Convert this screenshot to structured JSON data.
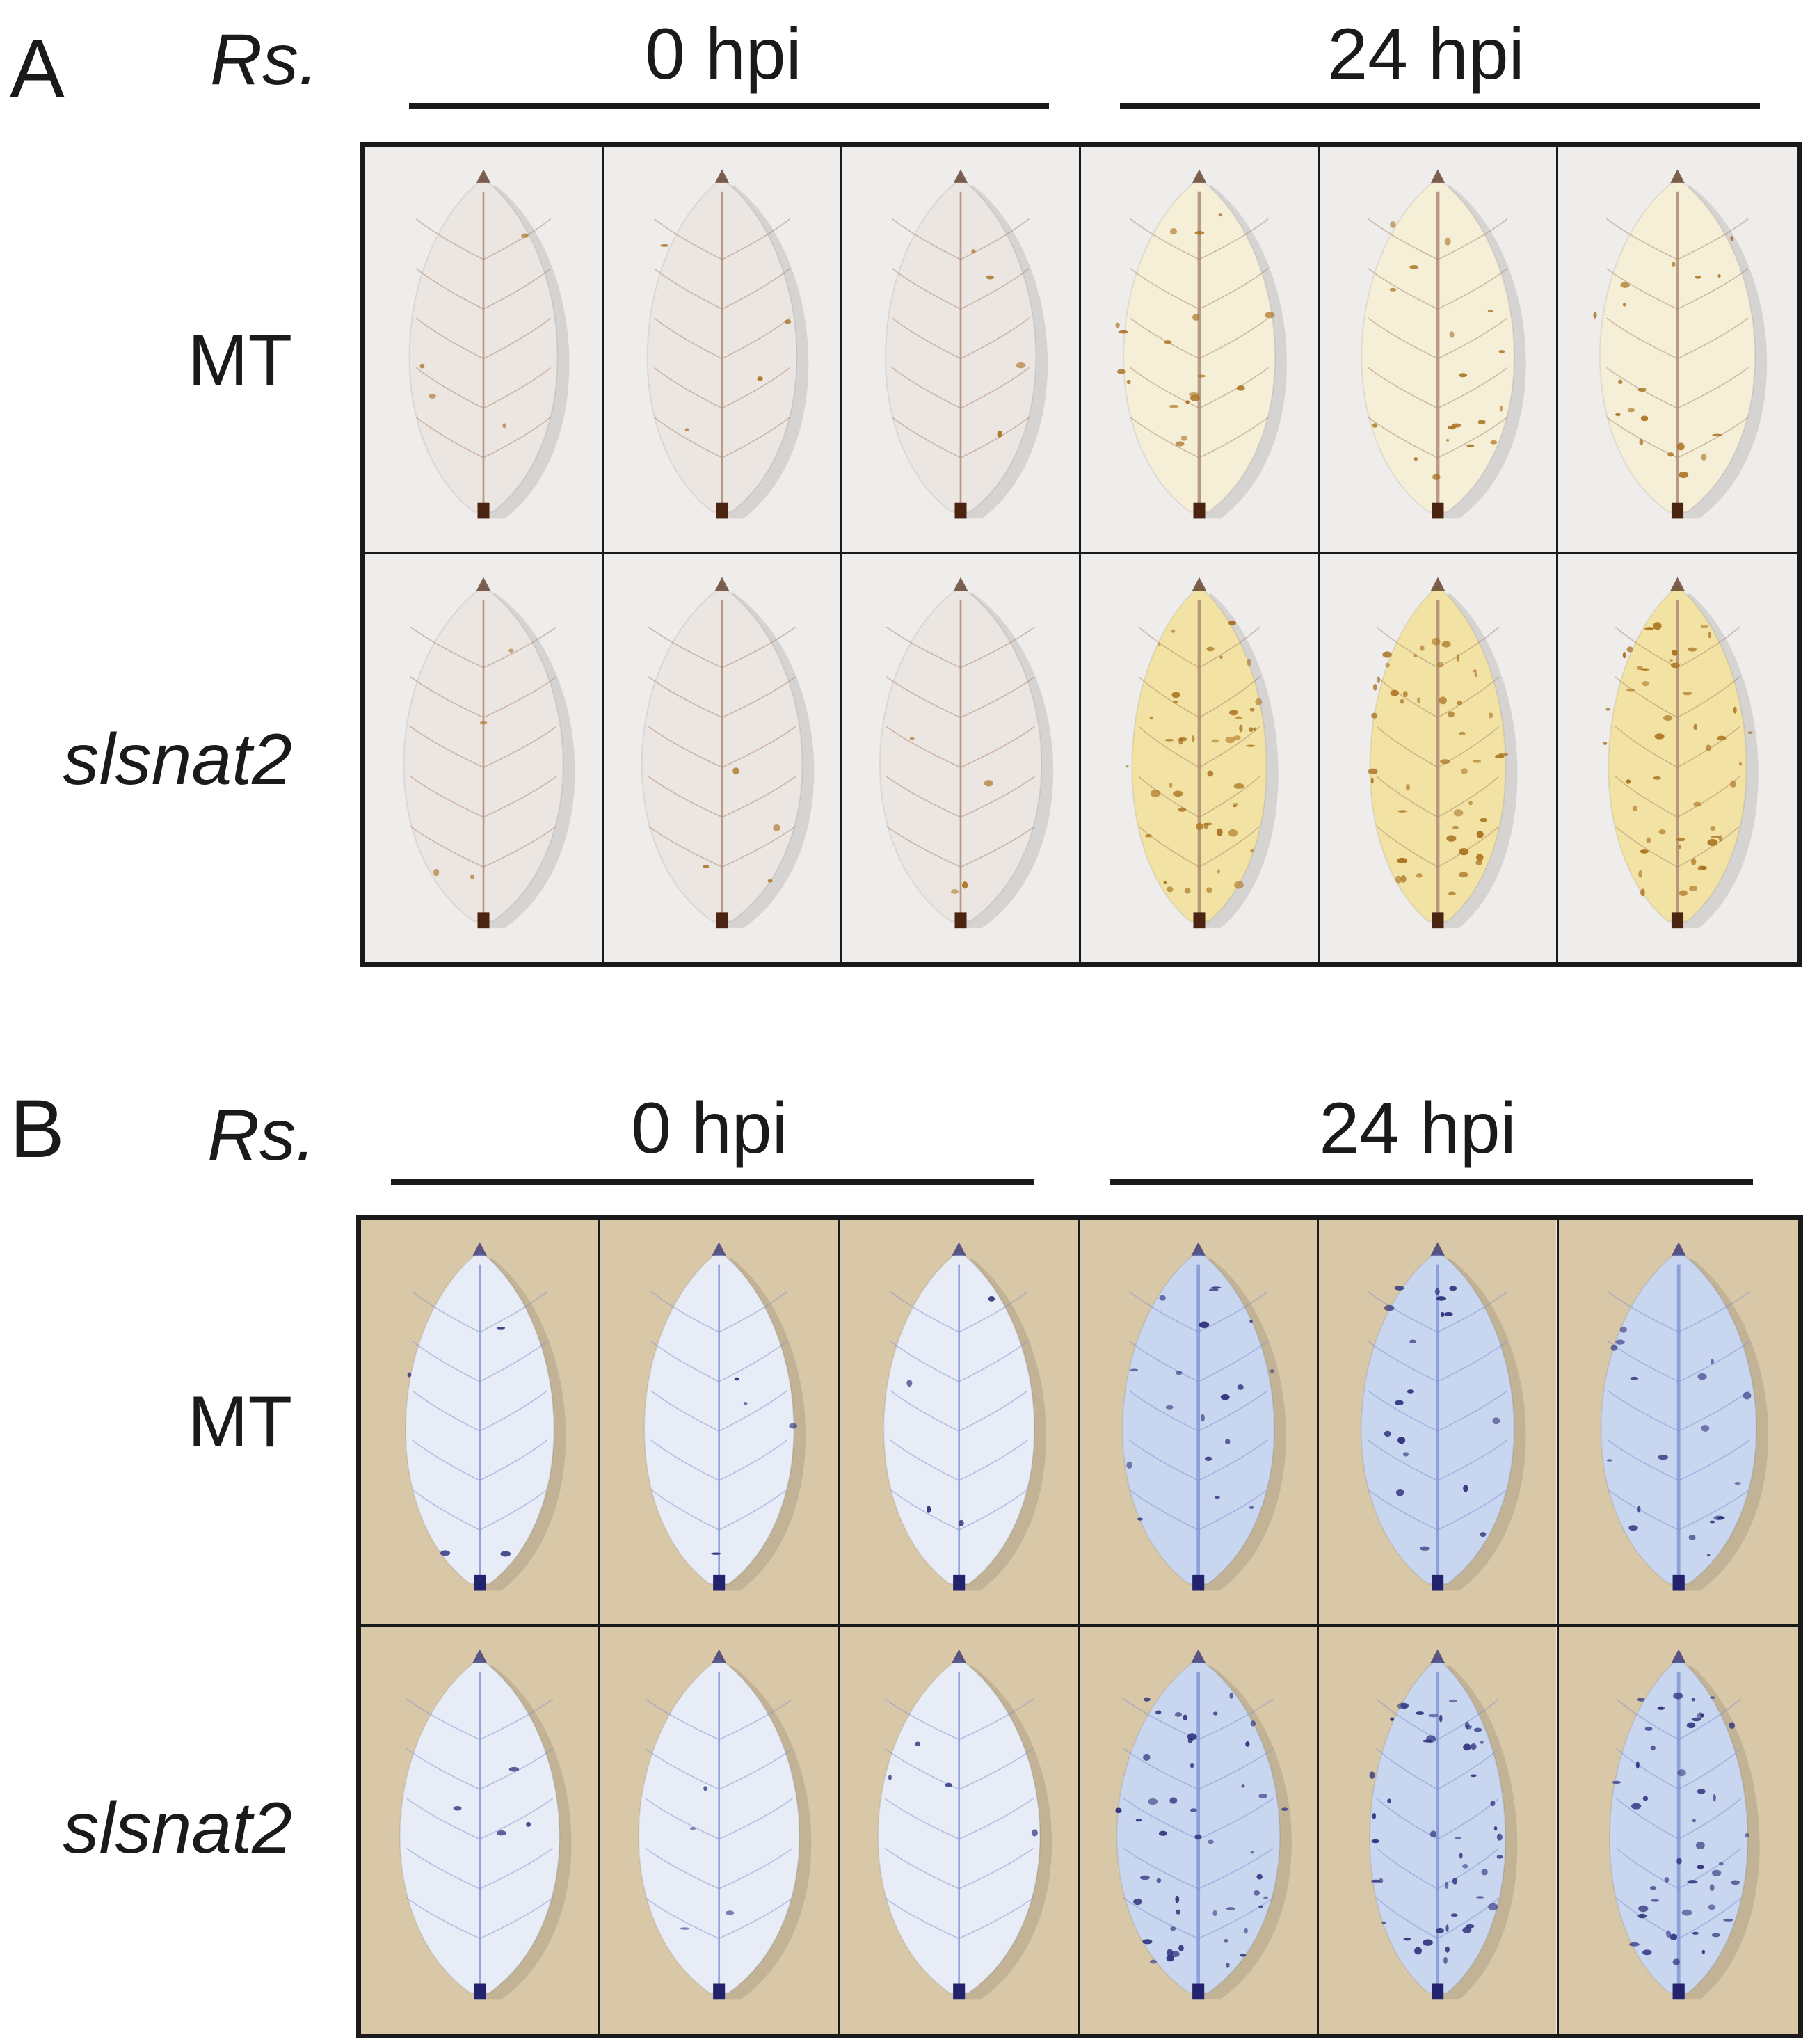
{
  "panels": [
    {
      "letter": "A",
      "treatment_label": "Rs.",
      "time_labels": [
        "0 hpi",
        "24 hpi"
      ],
      "row_labels": [
        "MT",
        "slsnat2"
      ],
      "stain": "brown",
      "colors": {
        "background": "#efedeb",
        "leaf_0hpi": "#ece6e2",
        "leaf_24hpi": "#f6efd8",
        "vein": "#a9856f",
        "spot": "#a86f1c",
        "petiole": "#4a2410"
      }
    },
    {
      "letter": "B",
      "treatment_label": "Rs.",
      "time_labels": [
        "0 hpi",
        "24 hpi"
      ],
      "row_labels": [
        "MT",
        "slsnat2"
      ],
      "stain": "blue",
      "colors": {
        "background": "#d9c8a8",
        "leaf_0hpi": "#e8ecf6",
        "leaf_24hpi": "#c9d6ef",
        "vein": "#7e92d4",
        "spot": "#2a2f7a",
        "petiole": "#22226e"
      }
    }
  ]
}
